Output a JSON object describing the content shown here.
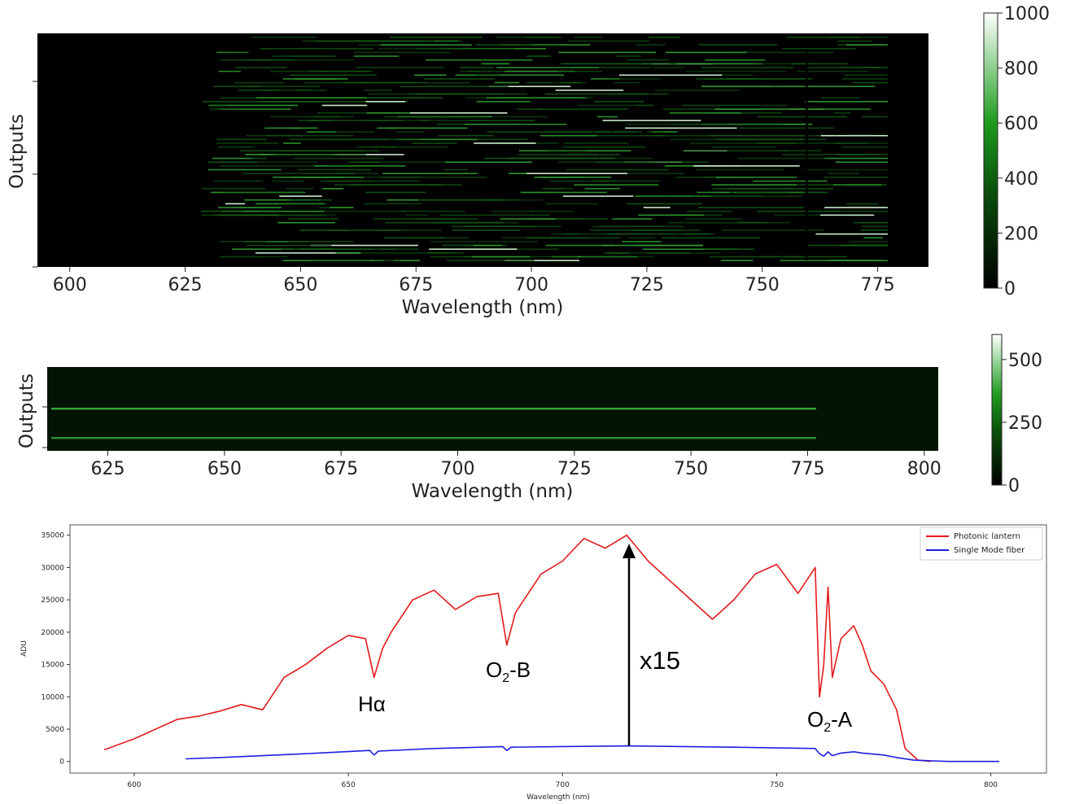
{
  "chart_data": [
    {
      "type": "heatmap",
      "xlabel": "Wavelength (nm)",
      "ylabel": "Outputs",
      "xticks": [
        600,
        625,
        650,
        675,
        700,
        725,
        750,
        775
      ],
      "xlim": [
        593,
        786
      ],
      "colorbar": {
        "ticks": [
          0,
          200,
          400,
          600,
          800,
          1000
        ],
        "range": [
          0,
          1000
        ],
        "colormap": "black-green-white"
      },
      "colors": {
        "low": "#000000",
        "mid": "#1a8a1a",
        "high": "#ffffff"
      }
    },
    {
      "type": "heatmap",
      "xlabel": "Wavelength (nm)",
      "ylabel": "Outputs",
      "xticks": [
        625,
        650,
        675,
        700,
        725,
        750,
        775,
        800
      ],
      "xlim": [
        612,
        803
      ],
      "colorbar": {
        "ticks": [
          0,
          250,
          500
        ],
        "range": [
          0,
          600
        ],
        "colormap": "black-green-white"
      },
      "colors": {
        "low": "#000000",
        "mid": "#1a8a1a",
        "high": "#ffffff"
      }
    },
    {
      "type": "line",
      "xlabel": "Wavelength (nm)",
      "ylabel": "ADU",
      "xticks": [
        600,
        650,
        700,
        750,
        800
      ],
      "yticks": [
        0,
        5000,
        10000,
        15000,
        20000,
        25000,
        30000,
        35000
      ],
      "xlim": [
        585,
        813
      ],
      "ylim": [
        -1800,
        36600
      ],
      "legend_position": "top-right",
      "series": [
        {
          "name": "Photonic lantern",
          "color": "#e31a1c",
          "x": [
            593,
            600,
            610,
            615,
            620,
            625,
            630,
            635,
            640,
            645,
            650,
            654,
            656,
            658,
            660,
            665,
            670,
            675,
            680,
            685,
            687,
            689,
            690,
            695,
            700,
            705,
            710,
            715,
            720,
            725,
            730,
            735,
            740,
            745,
            750,
            755,
            759,
            760,
            761,
            762,
            763,
            765,
            768,
            770,
            772,
            775,
            778,
            780,
            783,
            786
          ],
          "y": [
            1800,
            3500,
            6500,
            7000,
            7800,
            8800,
            8000,
            13000,
            15000,
            17500,
            19500,
            19000,
            13000,
            17500,
            20000,
            25000,
            26500,
            23500,
            25500,
            26000,
            18000,
            23000,
            24000,
            29000,
            31000,
            34500,
            33000,
            35000,
            31000,
            28000,
            25000,
            22000,
            25000,
            29000,
            30500,
            26000,
            30000,
            10000,
            15000,
            27000,
            13000,
            19000,
            21000,
            18000,
            14000,
            12000,
            8000,
            2000,
            200,
            0
          ]
        },
        {
          "name": "Single Mode fiber",
          "color": "#1f1fe0",
          "x": [
            612,
            620,
            640,
            655,
            656,
            657,
            670,
            686,
            687,
            688,
            700,
            715,
            740,
            759,
            760,
            761,
            762,
            763,
            765,
            768,
            770,
            775,
            778,
            782,
            790,
            802
          ],
          "y": [
            400,
            600,
            1200,
            1700,
            1000,
            1600,
            2000,
            2300,
            1700,
            2200,
            2300,
            2400,
            2200,
            2000,
            1200,
            800,
            1500,
            900,
            1300,
            1500,
            1300,
            1000,
            600,
            200,
            0,
            0
          ]
        }
      ],
      "annotations": [
        {
          "label": "Hα"
        },
        {
          "label": "O",
          "sub": "2",
          "suffix": "-B"
        },
        {
          "label": "x15"
        },
        {
          "label": "O",
          "sub": "2",
          "suffix": "-A"
        }
      ]
    }
  ]
}
